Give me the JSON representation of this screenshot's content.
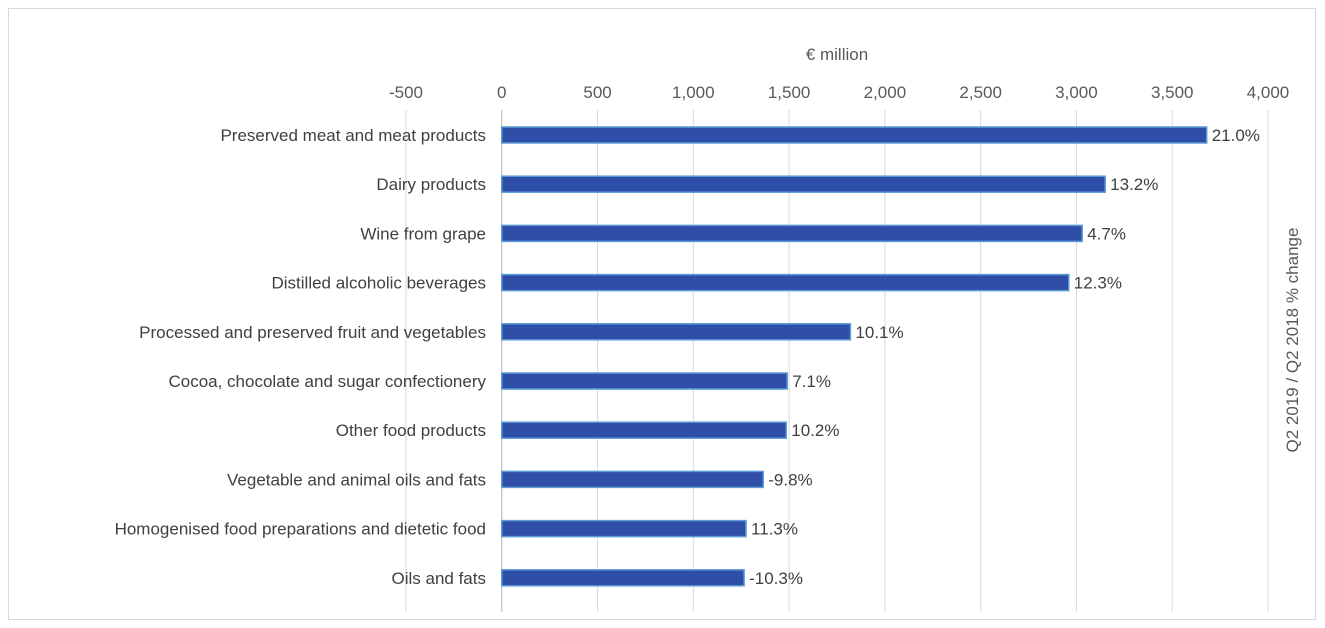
{
  "chart_data": {
    "type": "bar",
    "orientation": "horizontal",
    "xlabel": "€ million",
    "y2label": "Q2 2019 / Q2 2018 % change",
    "xlim": [
      -500,
      4000
    ],
    "x_ticks": [
      -500,
      0,
      500,
      1000,
      1500,
      2000,
      2500,
      3000,
      3500,
      4000
    ],
    "x_tick_labels": [
      "-500",
      "0",
      "500",
      "1,000",
      "1,500",
      "2,000",
      "2,500",
      "3,000",
      "3,500",
      "4,000"
    ],
    "x_axis_position": "top",
    "grid": true,
    "legend": "none",
    "categories": [
      "Preserved meat and meat products",
      "Dairy products",
      "Wine from grape",
      "Distilled alcoholic beverages",
      "Processed and preserved fruit and vegetables",
      "Cocoa, chocolate and sugar confectionery",
      "Other food products",
      "Vegetable and animal oils and fats",
      "Homogenised food preparations and dietetic food",
      "Oils and fats"
    ],
    "values": [
      3680,
      3150,
      3030,
      2960,
      1820,
      1490,
      1485,
      1365,
      1275,
      1265
    ],
    "data_labels": [
      "21.0%",
      "13.2%",
      "4.7%",
      "12.3%",
      "10.1%",
      "7.1%",
      "10.2%",
      "-9.8%",
      "11.3%",
      "-10.3%"
    ],
    "colors": {
      "bar_fill": "#2f4ea8",
      "bar_edge": "#5b9bd5",
      "grid": "#d9d9d9"
    }
  }
}
